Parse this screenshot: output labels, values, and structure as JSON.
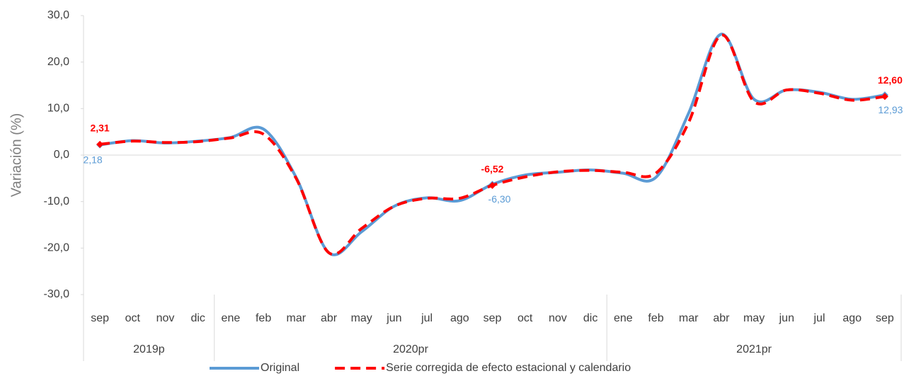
{
  "chart_data": {
    "type": "line",
    "y_label": "Variación (%)",
    "categories": [
      "sep",
      "oct",
      "nov",
      "dic",
      "ene",
      "feb",
      "mar",
      "abr",
      "may",
      "jun",
      "jul",
      "ago",
      "sep",
      "oct",
      "nov",
      "dic",
      "ene",
      "feb",
      "mar",
      "abr",
      "may",
      "jun",
      "jul",
      "ago",
      "sep"
    ],
    "x_groups": [
      {
        "label": "2019p",
        "count": 4
      },
      {
        "label": "2020pr",
        "count": 12
      },
      {
        "label": "2021pr",
        "count": 9
      }
    ],
    "series": [
      {
        "name": "Original",
        "color": "#5b9bd5",
        "dash": false,
        "values": [
          2.18,
          3.1,
          2.6,
          3.0,
          3.8,
          5.6,
          -4.8,
          -21,
          -16.5,
          -11,
          -9.2,
          -9.8,
          -6.3,
          -4.3,
          -3.7,
          -3.2,
          -3.9,
          -4.8,
          9,
          26,
          12,
          14,
          13.5,
          12,
          12.93
        ],
        "value_labels": [
          "2,18",
          null,
          null,
          null,
          null,
          null,
          null,
          null,
          null,
          null,
          null,
          null,
          "-6,30",
          null,
          null,
          null,
          null,
          null,
          null,
          null,
          null,
          null,
          null,
          null,
          "12,93"
        ]
      },
      {
        "name": "Serie corregida de efecto estacional y calendario",
        "color": "#ff0000",
        "dash": true,
        "values": [
          2.31,
          3.0,
          2.7,
          2.9,
          3.7,
          4.5,
          -5,
          -21,
          -15.8,
          -11,
          -9.3,
          -9.3,
          -6.52,
          -4.7,
          -3.6,
          -3.3,
          -3.7,
          -3.9,
          7,
          25.8,
          11.5,
          14,
          13.3,
          11.8,
          12.6
        ],
        "value_labels": [
          "2,31",
          null,
          null,
          null,
          null,
          null,
          null,
          null,
          null,
          null,
          null,
          null,
          "-6,52",
          null,
          null,
          null,
          null,
          null,
          null,
          null,
          null,
          null,
          null,
          null,
          "12,60"
        ]
      }
    ],
    "ylim": [
      -30,
      30
    ],
    "yticks": [
      {
        "value": -30,
        "label": "-30,0"
      },
      {
        "value": -20,
        "label": "-20,0"
      },
      {
        "value": -10,
        "label": "-10,0"
      },
      {
        "value": 0,
        "label": "0,0"
      },
      {
        "value": 10,
        "label": "10,0"
      },
      {
        "value": 20,
        "label": "20,0"
      },
      {
        "value": 30,
        "label": "30,0"
      }
    ],
    "legend": "bottom"
  }
}
